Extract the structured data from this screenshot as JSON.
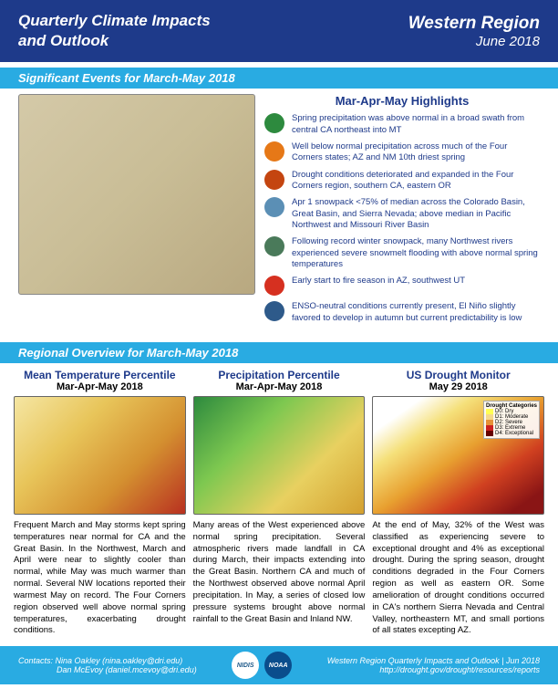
{
  "header": {
    "title_line1": "Quarterly Climate Impacts",
    "title_line2": "and Outlook",
    "region": "Western Region",
    "date": "June 2018"
  },
  "section1": {
    "banner": "Significant Events for March-May 2018",
    "highlights_title": "Mar-Apr-May Highlights",
    "items": [
      {
        "color": "#2d8a3e",
        "text": "Spring precipitation was above normal in a broad swath from central CA northeast into MT"
      },
      {
        "color": "#e67817",
        "text": "Well below normal precipitation across much of the Four Corners states; AZ and NM 10th driest spring"
      },
      {
        "color": "#c44510",
        "text": "Drought conditions deteriorated and expanded in the Four Corners region, southern CA, eastern OR"
      },
      {
        "color": "#5b8fb5",
        "text": "Apr 1 snowpack <75% of median across the Colorado Basin, Great Basin, and Sierra Nevada; above median in Pacific Northwest and Missouri River Basin"
      },
      {
        "color": "#4a7a5a",
        "text": "Following record winter snowpack, many Northwest rivers experienced severe snowmelt flooding with above normal spring temperatures"
      },
      {
        "color": "#d63020",
        "text": "Early start to fire season in AZ, southwest UT"
      },
      {
        "color": "#2e5a8a",
        "text": "ENSO-neutral conditions currently present, El Niño slightly favored to develop in autumn but current predictability is low"
      }
    ]
  },
  "section2": {
    "banner": "Regional Overview for March-May 2018",
    "panels": [
      {
        "title": "Mean Temperature Percentile",
        "sub": "Mar-Apr-May 2018",
        "map_bg": "linear-gradient(135deg, #f5e6a3, #e8c55a, #d49030, #b83020)",
        "text": "Frequent March and May storms kept spring temperatures near normal for CA and the Great Basin. In the Northwest, March and April were near to slightly cooler than normal, while May was much warmer than normal. Several NW locations reported their warmest May on record. The Four Corners region observed well above normal spring temperatures, exacerbating drought conditions."
      },
      {
        "title": "Precipitation Percentile",
        "sub": "Mar-Apr-May 2018",
        "map_bg": "linear-gradient(135deg, #2d8a3e, #7ec850, #e8d060, #d4a030)",
        "text": "Many areas of the West experienced above normal spring precipitation. Several atmospheric rivers made landfall in CA during March, their impacts extending into the Great Basin. Northern CA and much of the Northwest observed above normal April precipitation. In May, a series of closed low pressure systems brought above normal rainfall to the Great Basin and Inland NW."
      },
      {
        "title": "US Drought Monitor",
        "sub": "May 29 2018",
        "map_bg": "linear-gradient(145deg, #ffffff 15%, #f5e07a 30%, #e8a030 50%, #d04020 70%, #8a1515 90%)",
        "text": "At the end of May, 32% of the West was classified as experiencing severe to exceptional drought and 4% as exceptional drought. During the spring season, drought conditions degraded in the Four Corners region as well as eastern OR. Some amelioration of drought conditions occurred in CA's northern Sierra Nevada and Central Valley, northeastern MT, and small portions of all states excepting AZ."
      }
    ],
    "drought_legend": {
      "title": "Drought Categories",
      "items": [
        {
          "label": "D0: Dry",
          "color": "#ffff54"
        },
        {
          "label": "D1: Moderate",
          "color": "#f5d98a"
        },
        {
          "label": "D2: Severe",
          "color": "#e69138"
        },
        {
          "label": "D3: Extreme",
          "color": "#cc2020"
        },
        {
          "label": "D4: Exceptional",
          "color": "#660000"
        }
      ]
    }
  },
  "footer": {
    "contact_label": "Contacts:",
    "contact1": "Nina Oakley (nina.oakley@dri.edu)",
    "contact2": "Dan McEvoy (daniel.mcevoy@dri.edu)",
    "logo1": "NIDIS",
    "logo2": "NOAA",
    "right1": "Western Region Quarterly Impacts and Outlook | Jun 2018",
    "right2": "http://drought.gov/drought/resources/reports"
  }
}
